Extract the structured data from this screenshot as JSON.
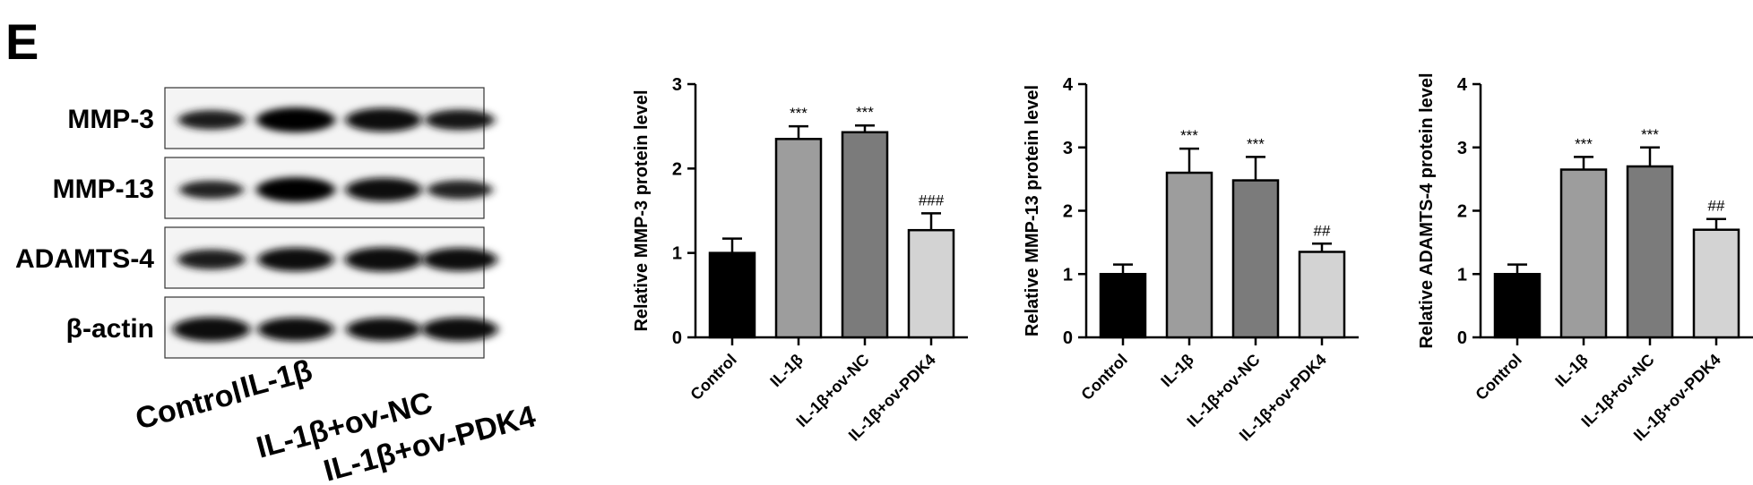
{
  "panel_label": "E",
  "western_blot": {
    "rows": [
      {
        "label": "MMP-3",
        "band_intensity": [
          0.55,
          1.0,
          0.9,
          0.65
        ]
      },
      {
        "label": "MMP-13",
        "band_intensity": [
          0.45,
          1.0,
          0.9,
          0.5
        ]
      },
      {
        "label": "ADAMTS-4",
        "band_intensity": [
          0.6,
          0.9,
          0.95,
          0.85
        ]
      },
      {
        "label": "β-actin",
        "band_intensity": [
          0.95,
          0.9,
          0.85,
          0.9
        ]
      }
    ],
    "lanes": [
      "Control",
      "IL-1β",
      "IL-1β+ov-NC",
      "IL-1β+ov-PDK4"
    ]
  },
  "colors": {
    "Control": "#000000",
    "IL-1β": "#9d9d9d",
    "IL-1β+ov-NC": "#7b7b7b",
    "IL-1β+ov-PDK4": "#d3d3d3"
  },
  "chart_data": [
    {
      "type": "bar",
      "categories": [
        "Control",
        "IL-1β",
        "IL-1β+ov-NC",
        "IL-1β+ov-PDK4"
      ],
      "values": [
        1.0,
        2.35,
        2.43,
        1.27
      ],
      "errors": [
        0.17,
        0.15,
        0.08,
        0.2
      ],
      "annotations": [
        "",
        "***",
        "***",
        "###"
      ],
      "ylabel": "Relative MMP-3 protein level",
      "ylim": [
        0,
        3
      ],
      "yticks": [
        "0",
        "1",
        "2",
        "3"
      ],
      "grid": false
    },
    {
      "type": "bar",
      "categories": [
        "Control",
        "IL-1β",
        "IL-1β+ov-NC",
        "IL-1β+ov-PDK4"
      ],
      "values": [
        1.0,
        2.6,
        2.48,
        1.35
      ],
      "errors": [
        0.15,
        0.38,
        0.37,
        0.13
      ],
      "annotations": [
        "",
        "***",
        "***",
        "##"
      ],
      "ylabel": "Relative MMP-13 protein level",
      "ylim": [
        0,
        4
      ],
      "yticks": [
        "0",
        "1",
        "2",
        "3",
        "4"
      ],
      "grid": false
    },
    {
      "type": "bar",
      "categories": [
        "Control",
        "IL-1β",
        "IL-1β+ov-NC",
        "IL-1β+ov-PDK4"
      ],
      "values": [
        1.0,
        2.65,
        2.7,
        1.7
      ],
      "errors": [
        0.15,
        0.2,
        0.3,
        0.17
      ],
      "annotations": [
        "",
        "***",
        "***",
        "##"
      ],
      "ylabel": "Relative ADAMTS-4 protein level",
      "ylim": [
        0,
        4
      ],
      "yticks": [
        "0",
        "1",
        "2",
        "3",
        "4"
      ],
      "grid": false
    }
  ]
}
